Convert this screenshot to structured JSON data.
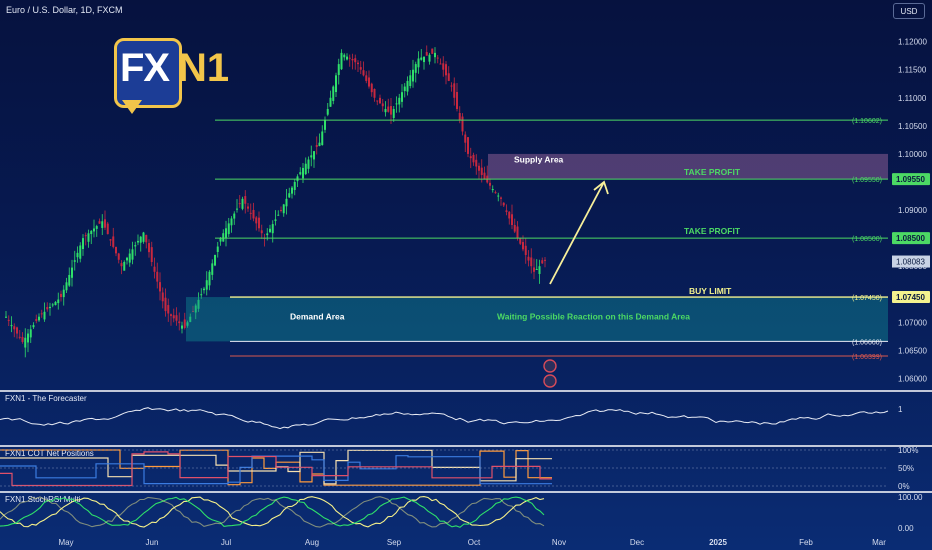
{
  "header": {
    "symbol_title": "Euro / U.S. Dollar, 1D, FXCM",
    "currency_badge": "USD"
  },
  "logo": {
    "fx_text": "FX",
    "n1_text": "N1"
  },
  "annotations": {
    "supply_area": "Supply Area",
    "demand_area": "Demand Area",
    "take_profit_1": "TAKE PROFIT",
    "take_profit_2": "TAKE PROFIT",
    "buy_limit": "BUY LIMIT",
    "waiting_note": "Waiting Possible Reaction on this Demand Area"
  },
  "chart_data": {
    "type": "candlestick",
    "y_axis": {
      "ticks": [
        1.12,
        1.115,
        1.11,
        1.105,
        1.1,
        1.095,
        1.09,
        1.085,
        1.08,
        1.075,
        1.07,
        1.065,
        1.06
      ],
      "tick_labels": [
        "1.12000",
        "1.11500",
        "1.11000",
        "1.10500",
        "1.10000",
        "1.09500",
        "1.09000",
        "1.08500",
        "1.08000",
        "1.07500",
        "1.07000",
        "1.06500",
        "1.06000"
      ],
      "ylim": [
        1.0583,
        1.1235
      ]
    },
    "x_axis": {
      "labels": [
        "May",
        "Jun",
        "Jul",
        "Aug",
        "Sep",
        "Oct",
        "Nov",
        "Dec",
        "2025",
        "Feb",
        "Mar"
      ]
    },
    "close_anchors": [
      [
        0,
        1.071
      ],
      [
        6,
        1.0665
      ],
      [
        12,
        1.071
      ],
      [
        20,
        1.0745
      ],
      [
        28,
        1.085
      ],
      [
        35,
        1.088
      ],
      [
        42,
        1.08
      ],
      [
        50,
        1.086
      ],
      [
        58,
        1.072
      ],
      [
        65,
        1.069
      ],
      [
        72,
        1.076
      ],
      [
        78,
        1.085
      ],
      [
        86,
        1.092
      ],
      [
        94,
        1.085
      ],
      [
        100,
        1.09
      ],
      [
        106,
        1.096
      ],
      [
        114,
        1.102
      ],
      [
        122,
        1.118
      ],
      [
        128,
        1.116
      ],
      [
        134,
        1.11
      ],
      [
        140,
        1.107
      ],
      [
        145,
        1.112
      ],
      [
        150,
        1.117
      ],
      [
        156,
        1.118
      ],
      [
        162,
        1.112
      ],
      [
        168,
        1.1
      ],
      [
        174,
        1.0955
      ],
      [
        180,
        1.092
      ],
      [
        186,
        1.085
      ],
      [
        192,
        1.079
      ],
      [
        196,
        1.081
      ]
    ],
    "levels": [
      {
        "value": 1.10602,
        "label": "(1.10602)",
        "color": "#4cd964"
      },
      {
        "value": 1.0955,
        "label": "(1.09550)",
        "price_tag": "1.09550",
        "color": "#4cd964"
      },
      {
        "value": 1.085,
        "label": "(1.08500)",
        "price_tag": "1.08500",
        "color": "#4cd964"
      },
      {
        "value": 1.0745,
        "label": "(1.07450)",
        "price_tag": "1.07450",
        "color": "#f3f28e"
      },
      {
        "value": 1.0666,
        "label": "(1.06660)",
        "color": "#e8ecf5"
      },
      {
        "value": 1.06399,
        "label": "(1.06399)",
        "color": "#d9574f"
      }
    ],
    "last_price": {
      "value": 1.08083,
      "label": "1.08083"
    },
    "supply_zone": [
      1.0955,
      1.1
    ],
    "demand_zone": [
      1.0666,
      1.0745
    ],
    "indicators": [
      {
        "name": "FXN1 - The Forecaster",
        "tick_labels": [
          "1"
        ]
      },
      {
        "name": "FXN1 COT Net Positions",
        "tick_labels": [
          "100%",
          "50%",
          "0%"
        ]
      },
      {
        "name": "FXN1 StochRSI Multi",
        "tick_labels": [
          "100.00",
          "0.00"
        ]
      }
    ]
  },
  "colors": {
    "bull": "#2fe06a",
    "bear": "#c8283f",
    "supply_zone": "#8a5c94",
    "demand_zone": "#0f8a93",
    "arrow": "#f7ef9a"
  }
}
